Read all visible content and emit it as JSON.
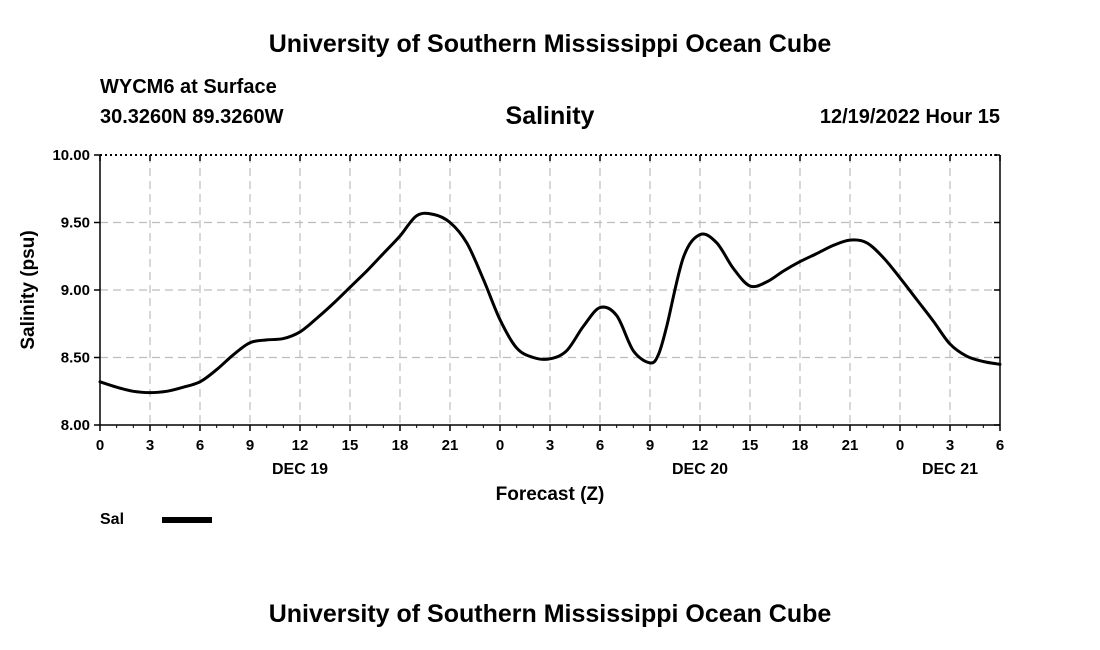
{
  "page_title_top": "University of Southern Mississippi Ocean Cube",
  "page_title_bottom": "University of Southern Mississippi Ocean Cube",
  "station": {
    "name": "WYCM6 at Surface",
    "coords": "30.3260N  89.3260W"
  },
  "run_time": "12/19/2022 Hour 15",
  "legend": {
    "label": "Sal"
  },
  "colors": {
    "line": "#000000",
    "grid": "#bdbdbd",
    "axis": "#000000"
  },
  "chart_data": {
    "type": "line",
    "title": "Salinity",
    "xlabel": "Forecast (Z)",
    "ylabel": "Salinity (psu)",
    "xlim": [
      0,
      54
    ],
    "ylim": [
      8.0,
      10.0
    ],
    "xticks": [
      0,
      3,
      6,
      9,
      12,
      15,
      18,
      21,
      24,
      27,
      30,
      33,
      36,
      39,
      42,
      45,
      48,
      51,
      54
    ],
    "xtick_labels": [
      "0",
      "3",
      "6",
      "9",
      "12",
      "15",
      "18",
      "21",
      "0",
      "3",
      "6",
      "9",
      "12",
      "15",
      "18",
      "21",
      "0",
      "3",
      "6"
    ],
    "yticks": [
      8.0,
      8.5,
      9.0,
      9.5,
      10.0
    ],
    "ytick_labels": [
      "8.00",
      "8.50",
      "9.00",
      "9.50",
      "10.00"
    ],
    "day_labels": [
      {
        "label": "DEC 19",
        "x": 12
      },
      {
        "label": "DEC 20",
        "x": 36
      },
      {
        "label": "DEC 21",
        "x": 51
      }
    ],
    "grid": true,
    "series": [
      {
        "name": "Sal",
        "x": [
          0,
          1,
          2,
          3,
          4,
          5,
          6,
          7,
          8,
          9,
          10,
          11,
          12,
          13,
          14,
          15,
          16,
          17,
          18,
          19,
          20,
          21,
          22,
          23,
          24,
          25,
          26,
          27,
          28,
          29,
          30,
          31,
          32,
          33,
          33.5,
          34,
          35,
          36,
          37,
          38,
          39,
          40,
          41,
          42,
          43,
          44,
          45,
          46,
          47,
          48,
          49,
          50,
          51,
          52,
          53,
          54
        ],
        "values": [
          8.32,
          8.28,
          8.25,
          8.24,
          8.25,
          8.28,
          8.32,
          8.41,
          8.52,
          8.61,
          8.63,
          8.64,
          8.69,
          8.79,
          8.9,
          9.02,
          9.14,
          9.27,
          9.4,
          9.55,
          9.56,
          9.5,
          9.35,
          9.08,
          8.78,
          8.57,
          8.5,
          8.49,
          8.55,
          8.73,
          8.87,
          8.81,
          8.55,
          8.46,
          8.52,
          8.73,
          9.24,
          9.41,
          9.35,
          9.16,
          9.03,
          9.06,
          9.14,
          9.21,
          9.27,
          9.33,
          9.37,
          9.35,
          9.24,
          9.09,
          8.93,
          8.77,
          8.6,
          8.51,
          8.47,
          8.45
        ]
      }
    ]
  }
}
